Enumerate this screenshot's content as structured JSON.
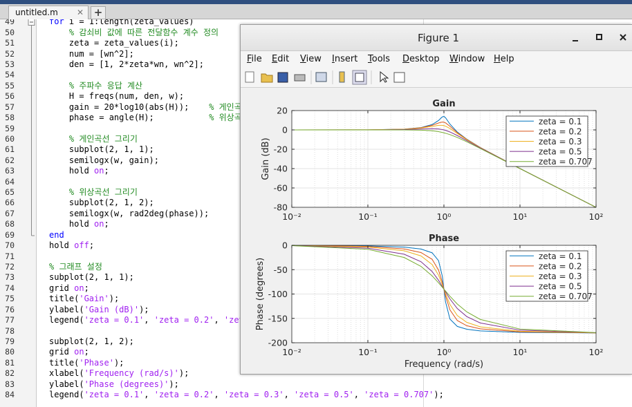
{
  "editor": {
    "tab": "untitled.m",
    "lines": [
      {
        "number": 49,
        "code": "for i = 1:length(zeta_values)"
      },
      {
        "number": 50,
        "code": "    % 감쇠비 값에 따른 전달함수 계수 정의"
      },
      {
        "number": 51,
        "code": "    zeta = zeta_values(i);"
      },
      {
        "number": 52,
        "code": "    num = [wn^2];"
      },
      {
        "number": 53,
        "code": "    den = [1, 2*zeta*wn, wn^2];"
      },
      {
        "number": 54
      },
      {
        "number": 55,
        "code": "    % 주파수 응답 계산"
      },
      {
        "number": 56,
        "code": "    H = freqs(num, den, w);"
      },
      {
        "number": 57,
        "code": "    gain = 20*log10(abs(H));    % 게인곡"
      },
      {
        "number": 58,
        "code": "    phase = angle(H);           % 위상곡"
      },
      {
        "number": 59
      },
      {
        "number": 60,
        "code": "    % 게인곡선 그리기"
      },
      {
        "number": 61,
        "code": "    subplot(2, 1, 1);"
      },
      {
        "number": 62,
        "code": "    semilogx(w, gain);"
      },
      {
        "number": 63,
        "code": "    hold on;"
      },
      {
        "number": 64
      },
      {
        "number": 65,
        "code": "    % 위상곡선 그리기"
      },
      {
        "number": 66,
        "code": "    subplot(2, 1, 2);"
      },
      {
        "number": 67,
        "code": "    semilogx(w, rad2deg(phase));"
      },
      {
        "number": 68,
        "code": "    hold on;"
      },
      {
        "number": 69,
        "code": "end"
      },
      {
        "number": 70,
        "code": "hold off;"
      },
      {
        "number": 71
      },
      {
        "number": 72,
        "code": "% 그래프 설정"
      },
      {
        "number": 73,
        "code": "subplot(2, 1, 1);"
      },
      {
        "number": 74,
        "code": "grid on;"
      },
      {
        "number": 75,
        "code": "title('Gain');"
      },
      {
        "number": 76,
        "code": "ylabel('Gain (dB)');"
      },
      {
        "number": 77,
        "code": "legend('zeta = 0.1', 'zeta = 0.2', 'zet"
      },
      {
        "number": 78
      },
      {
        "number": 79,
        "code": "subplot(2, 1, 2);"
      },
      {
        "number": 80,
        "code": "grid on;"
      },
      {
        "number": 81,
        "code": "title('Phase');"
      },
      {
        "number": 82,
        "code": "xlabel('Frequency (rad/s)');"
      },
      {
        "number": 83,
        "code": "ylabel('Phase (degrees)');"
      },
      {
        "number": 84,
        "code": "legend('zeta = 0.1', 'zeta = 0.2', 'zeta = 0.3', 'zeta = 0.5', 'zeta = 0.707');"
      }
    ]
  },
  "figure": {
    "title": "Figure 1",
    "menu": [
      "File",
      "Edit",
      "View",
      "Insert",
      "Tools",
      "Desktop",
      "Window",
      "Help"
    ]
  },
  "chart_data": [
    {
      "type": "line",
      "title": "Gain",
      "ylabel": "Gain (dB)",
      "xscale": "log",
      "grid": true,
      "legend": "northeast",
      "x": [
        0.01,
        0.1,
        0.3,
        0.5,
        0.7,
        0.85,
        0.95,
        1,
        1.05,
        1.2,
        1.5,
        2,
        3,
        10,
        100
      ],
      "xlim": [
        0.01,
        100
      ],
      "xticks": [
        {
          "value": 0.01,
          "label": "10⁻²"
        },
        {
          "value": 0.1,
          "label": "10⁻¹"
        },
        {
          "value": 1,
          "label": "10⁰"
        },
        {
          "value": 10,
          "label": "10¹"
        },
        {
          "value": 100,
          "label": "10²"
        }
      ],
      "ylim": [
        -80,
        20
      ],
      "yticks": [
        -80,
        -60,
        -40,
        -20,
        0,
        20
      ],
      "series": [
        {
          "name": "zeta = 0.1",
          "color": "#0072bd",
          "values": [
            0,
            0.09,
            0.8,
            2.42,
            5.53,
            9.75,
            13.41,
            13.98,
            12.63,
            6,
            -2.18,
            -9.62,
            -18.09,
            -39.91,
            -80
          ]
        },
        {
          "name": "zeta = 0.2",
          "color": "#d95319",
          "values": [
            0,
            0.08,
            0.74,
            2.2,
            4.7,
            7.15,
            8.13,
            7.96,
            7.28,
            3.73,
            -2.84,
            -9.84,
            -18.16,
            -39.92,
            -80
          ]
        },
        {
          "name": "zeta = 0.3",
          "color": "#edb120",
          "values": [
            0,
            0.07,
            0.65,
            1.85,
            3.6,
            4.72,
            4.76,
            4.44,
            3.9,
            1.48,
            -3.75,
            -10.19,
            -18.28,
            -39.93,
            -80
          ]
        },
        {
          "name": "zeta = 0.5",
          "color": "#7e2f8e",
          "values": [
            0,
            0.04,
            0.37,
            0.9,
            1.25,
            0.97,
            0.4,
            0,
            -0.47,
            -2.13,
            -5.81,
            -11.14,
            -18.63,
            -39.96,
            -80
          ]
        },
        {
          "name": "zeta = 0.707",
          "color": "#77ac30",
          "values": [
            0,
            0,
            -0.04,
            -0.26,
            -0.93,
            -1.82,
            -2.59,
            -3.01,
            -3.45,
            -4.88,
            -7.83,
            -12.3,
            -19.14,
            -40,
            -80
          ]
        }
      ]
    },
    {
      "type": "line",
      "title": "Phase",
      "xlabel": "Frequency (rad/s)",
      "ylabel": "Phase (degrees)",
      "xscale": "log",
      "grid": true,
      "legend": "northeast",
      "x": [
        0.01,
        0.1,
        0.3,
        0.5,
        0.7,
        0.85,
        0.95,
        1,
        1.05,
        1.2,
        1.5,
        2,
        3,
        10,
        100
      ],
      "xlim": [
        0.01,
        100
      ],
      "xticks": [
        {
          "value": 0.01,
          "label": "10⁻²"
        },
        {
          "value": 0.1,
          "label": "10⁻¹"
        },
        {
          "value": 1,
          "label": "10⁰"
        },
        {
          "value": 10,
          "label": "10¹"
        },
        {
          "value": 100,
          "label": "10²"
        }
      ],
      "ylim": [
        -200,
        0
      ],
      "yticks": [
        -200,
        -150,
        -100,
        -50,
        0
      ],
      "series": [
        {
          "name": "zeta = 0.1",
          "color": "#0072bd",
          "values": [
            -0.1,
            -1.2,
            -3.8,
            -7.6,
            -15.4,
            -31.5,
            -62.8,
            -90,
            -116,
            -151.4,
            -166.5,
            -172.4,
            -175.7,
            -178.8,
            -179.9
          ]
        },
        {
          "name": "zeta = 0.2",
          "color": "#d95319",
          "values": [
            -0.2,
            -2.3,
            -7.5,
            -14.9,
            -28.8,
            -50.8,
            -75.6,
            -90,
            -103.7,
            -132.5,
            -154.4,
            -165.1,
            -171.5,
            -177.7,
            -179.8
          ]
        },
        {
          "name": "zeta = 0.3",
          "color": "#edb120",
          "values": [
            -0.3,
            -3.5,
            -11.2,
            -21.8,
            -39.5,
            -61.4,
            -80.3,
            -90,
            -99.2,
            -121.4,
            -144.2,
            -158.2,
            -167.3,
            -176.5,
            -179.7
          ]
        },
        {
          "name": "zeta = 0.5",
          "color": "#7e2f8e",
          "values": [
            -0.6,
            -5.8,
            -18.3,
            -33.7,
            -53.9,
            -71.9,
            -84.1,
            -90,
            -95.6,
            -110.1,
            -129.8,
            -146.3,
            -159.4,
            -174.2,
            -179.4
          ]
        },
        {
          "name": "zeta = 0.707",
          "color": "#77ac30",
          "values": [
            -0.8,
            -8.1,
            -25,
            -43.3,
            -62.7,
            -77,
            -85.8,
            -90,
            -93.9,
            -104.5,
            -120.5,
            -136.7,
            -152.1,
            -171.9,
            -179.2
          ]
        }
      ]
    }
  ]
}
